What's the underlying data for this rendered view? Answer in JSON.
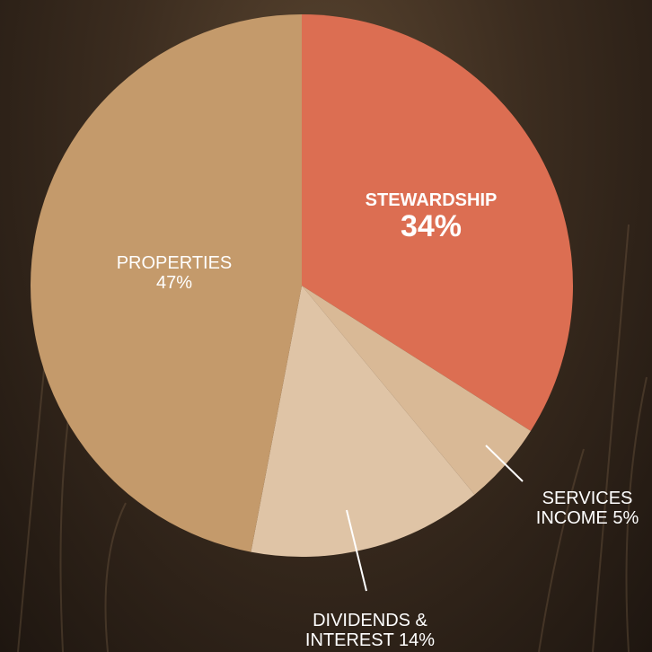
{
  "chart_data": {
    "type": "pie",
    "categories": [
      "STEWARDSHIP",
      "SERVICES INCOME",
      "DIVIDENDS & INTEREST",
      "PROPERTIES"
    ],
    "values": [
      34,
      5,
      14,
      47
    ],
    "value_labels": [
      "34%",
      "5%",
      "14%",
      "47%"
    ],
    "colors": [
      "#dc6e52",
      "#d9b996",
      "#dfc4a6",
      "#c49a6b"
    ]
  }
}
